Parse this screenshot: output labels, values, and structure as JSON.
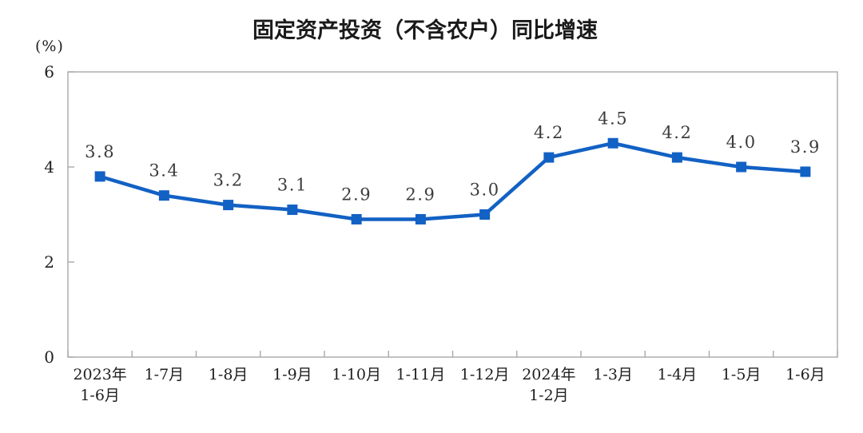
{
  "title": "固定资产投资（不含农户）同比增速",
  "unit_label": "(%)",
  "chart_data": {
    "type": "line",
    "title": "固定资产投资（不含农户）同比增速",
    "ylabel": "(%)",
    "xlabel": "",
    "categories": [
      "2023年\n1-6月",
      "1-7月",
      "1-8月",
      "1-9月",
      "1-10月",
      "1-11月",
      "1-12月",
      "2024年\n1-2月",
      "1-3月",
      "1-4月",
      "1-5月",
      "1-6月"
    ],
    "values": [
      3.8,
      3.4,
      3.2,
      3.1,
      2.9,
      2.9,
      3.0,
      4.2,
      4.5,
      4.2,
      4.0,
      3.9
    ],
    "ylim": [
      0,
      6
    ],
    "yticks": [
      0,
      2,
      4,
      6
    ],
    "grid": false,
    "legend": "none",
    "marker": "square",
    "line_color": "#1261c4",
    "data_label_color": "#3c3c3c",
    "axis_color": "#a8a8a8",
    "tick_text_color": "#1f1f1f"
  }
}
